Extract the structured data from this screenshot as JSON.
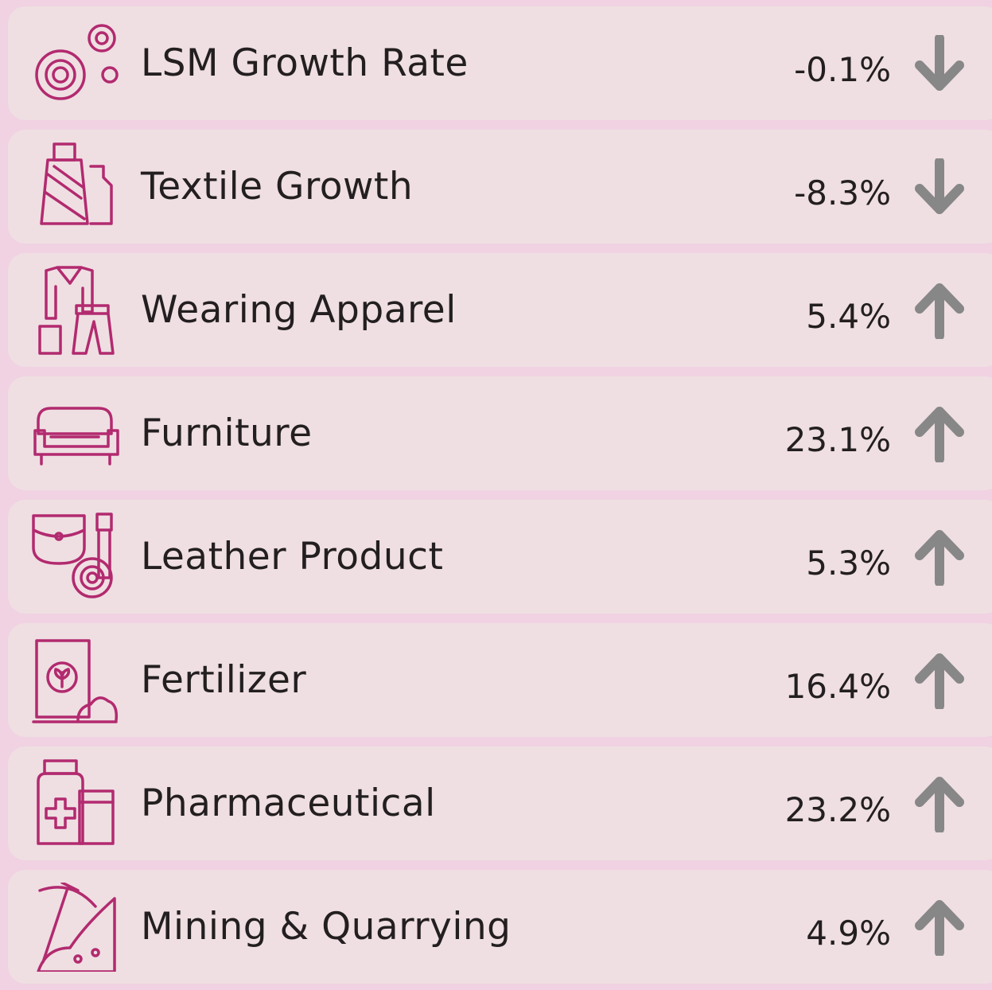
{
  "items": [
    {
      "label": "LSM Growth Rate",
      "value": "-0.1%"
    },
    {
      "label": "Textile Growth",
      "value": "-8.3%"
    },
    {
      "label": "Wearing Apparel",
      "value": "5.4%"
    },
    {
      "label": "Furniture",
      "value": "23.1%"
    },
    {
      "label": "Leather Product",
      "value": "5.3%"
    },
    {
      "label": "Fertilizer",
      "value": "16.4%"
    },
    {
      "label": "Pharmaceutical",
      "value": "23.2%"
    },
    {
      "label": "Mining & Quarrying",
      "value": "4.9%"
    }
  ]
}
